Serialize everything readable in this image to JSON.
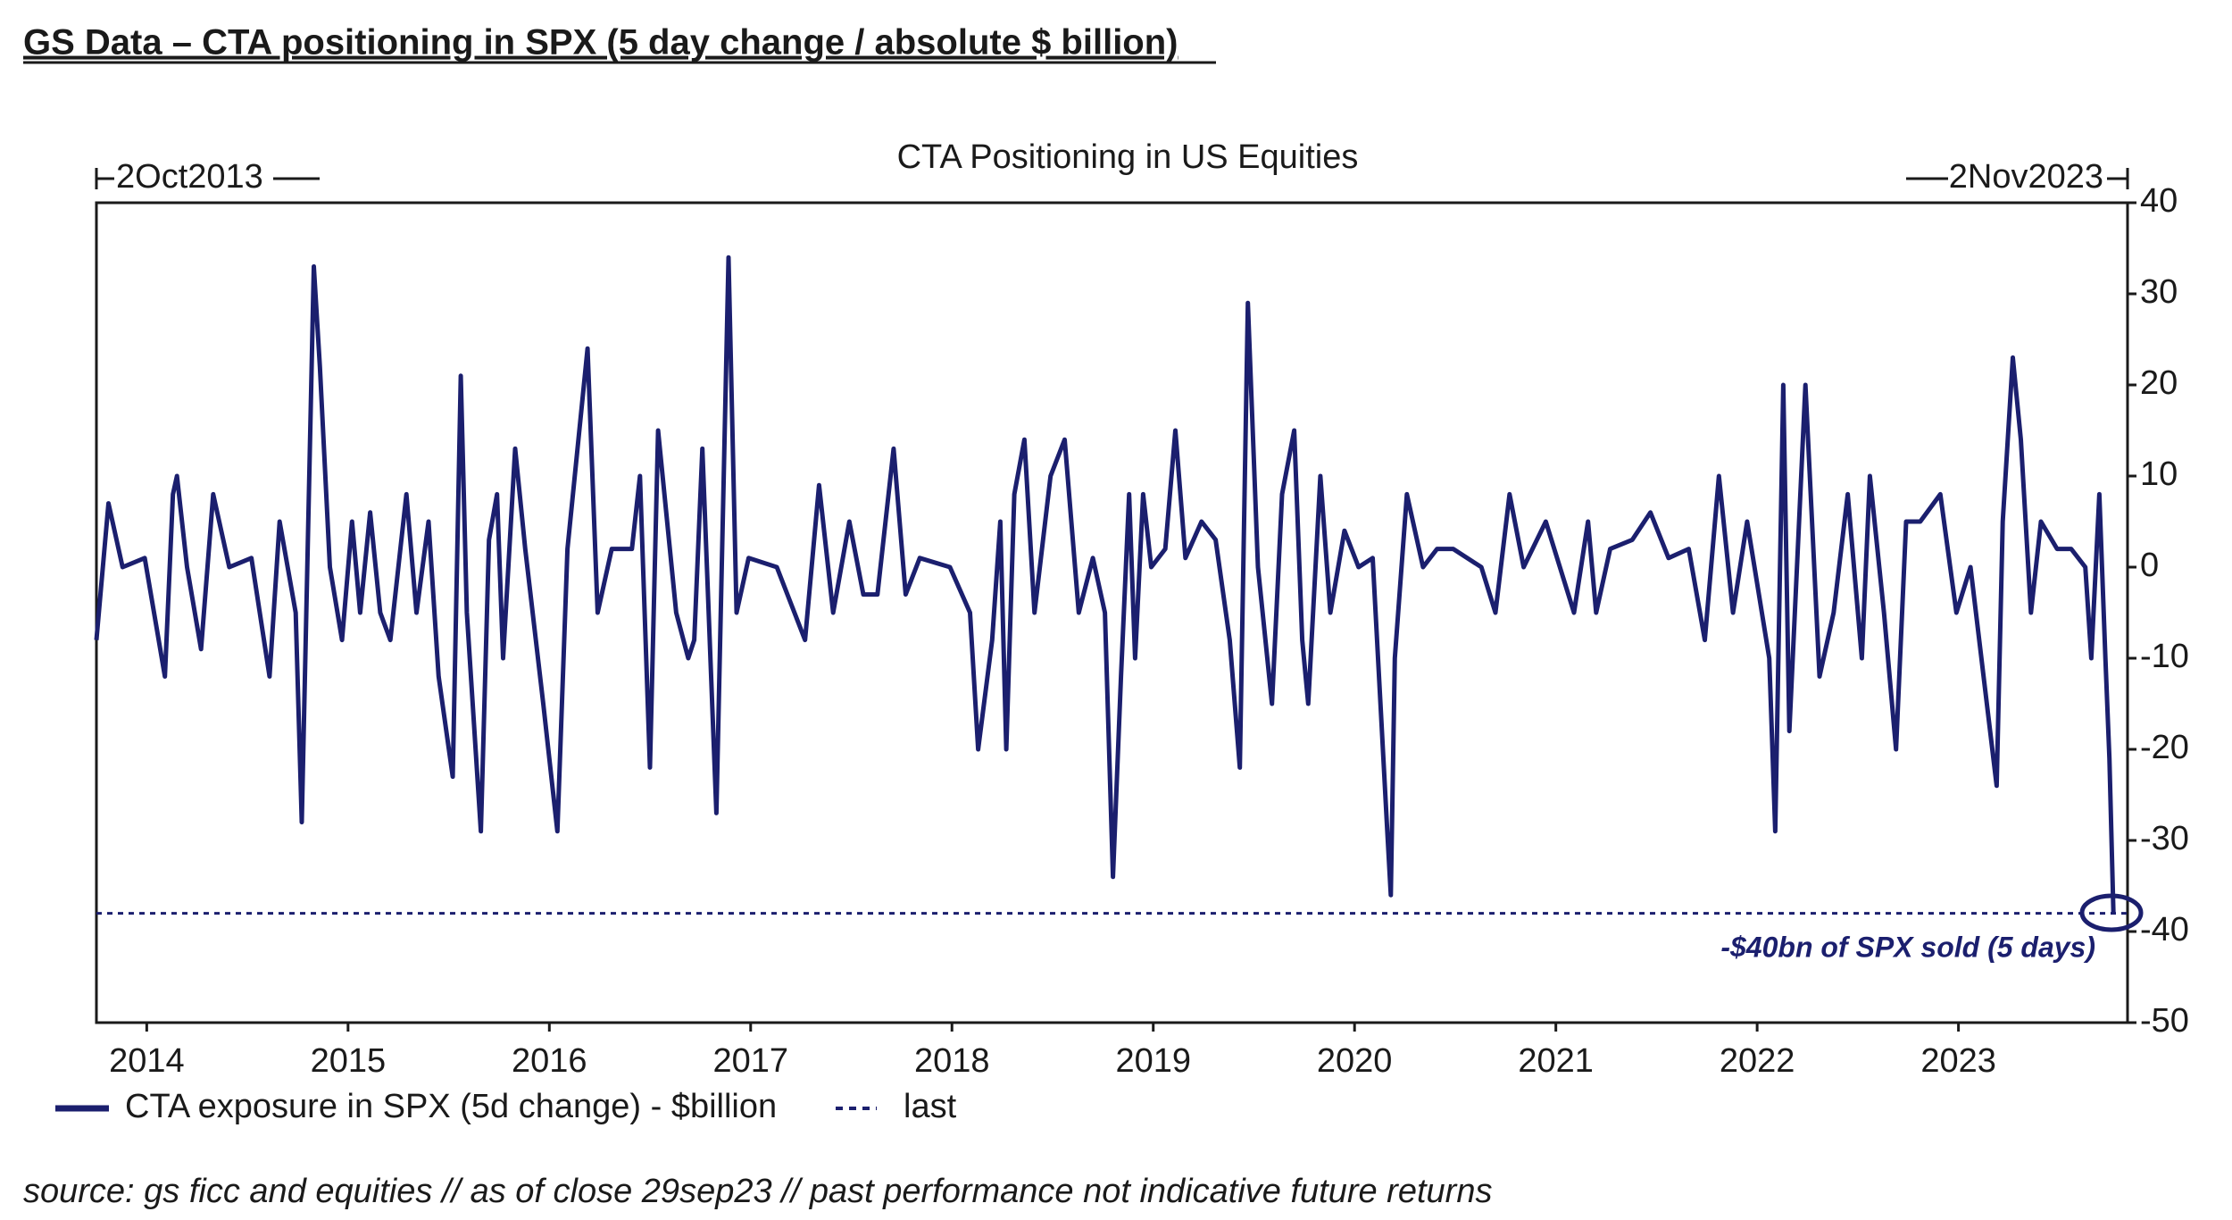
{
  "chart_data": {
    "type": "line",
    "header": "GS Data – CTA positioning in SPX (5 day change / absolute $ billion)",
    "title": "CTA Positioning in US Equities",
    "start_label": "2Oct2013",
    "end_label": "2Nov2023",
    "x": [
      2013.75,
      2013.81,
      2013.88,
      2013.99,
      2014.09,
      2014.13,
      2014.15,
      2014.2,
      2014.27,
      2014.33,
      2014.41,
      2014.52,
      2014.61,
      2014.66,
      2014.74,
      2014.77,
      2014.83,
      2014.86,
      2014.91,
      2014.97,
      2015.02,
      2015.06,
      2015.11,
      2015.16,
      2015.21,
      2015.29,
      2015.34,
      2015.4,
      2015.45,
      2015.52,
      2015.56,
      2015.59,
      2015.66,
      2015.7,
      2015.74,
      2015.77,
      2015.83,
      2015.88,
      2015.97,
      2016.04,
      2016.09,
      2016.19,
      2016.24,
      2016.31,
      2016.41,
      2016.45,
      2016.5,
      2016.54,
      2016.63,
      2016.69,
      2016.72,
      2016.76,
      2016.83,
      2016.89,
      2016.93,
      2016.99,
      2017.13,
      2017.27,
      2017.34,
      2017.41,
      2017.49,
      2017.56,
      2017.63,
      2017.71,
      2017.77,
      2017.84,
      2017.99,
      2018.09,
      2018.13,
      2018.2,
      2018.24,
      2018.27,
      2018.31,
      2018.36,
      2018.41,
      2018.49,
      2018.56,
      2018.63,
      2018.7,
      2018.76,
      2018.8,
      2018.84,
      2018.88,
      2018.91,
      2018.95,
      2018.99,
      2019.06,
      2019.11,
      2019.16,
      2019.24,
      2019.31,
      2019.38,
      2019.43,
      2019.47,
      2019.52,
      2019.59,
      2019.64,
      2019.7,
      2019.74,
      2019.77,
      2019.83,
      2019.88,
      2019.95,
      2020.02,
      2020.09,
      2020.16,
      2020.18,
      2020.2,
      2020.26,
      2020.34,
      2020.41,
      2020.49,
      2020.63,
      2020.7,
      2020.77,
      2020.84,
      2020.95,
      2021.02,
      2021.09,
      2021.16,
      2021.2,
      2021.27,
      2021.38,
      2021.47,
      2021.56,
      2021.66,
      2021.74,
      2021.81,
      2021.88,
      2021.95,
      2022.06,
      2022.09,
      2022.13,
      2022.16,
      2022.24,
      2022.31,
      2022.38,
      2022.45,
      2022.52,
      2022.56,
      2022.63,
      2022.69,
      2022.74,
      2022.81,
      2022.91,
      2022.99,
      2023.06,
      2023.19,
      2023.22,
      2023.27,
      2023.31,
      2023.36,
      2023.41,
      2023.49,
      2023.56,
      2023.63,
      2023.66,
      2023.7,
      2023.73,
      2023.75,
      2023.77
    ],
    "series": [
      {
        "name": "CTA exposure in SPX (5d change) - $billion",
        "color": "#1b1f6e",
        "values": [
          -8,
          7,
          0,
          1,
          -12,
          8,
          10,
          0,
          -9,
          8,
          0,
          1,
          -12,
          5,
          -5,
          -28,
          33,
          22,
          0,
          -8,
          5,
          -5,
          6,
          -5,
          -8,
          8,
          -5,
          5,
          -12,
          -23,
          21,
          -5,
          -29,
          3,
          8,
          -10,
          13,
          2,
          -15,
          -29,
          2,
          24,
          -5,
          2,
          2,
          10,
          -22,
          15,
          -5,
          -10,
          -8,
          13,
          -27,
          34,
          -5,
          1,
          0,
          -8,
          9,
          -5,
          5,
          -3,
          -3,
          13,
          -3,
          1,
          0,
          -5,
          -20,
          -8,
          5,
          -20,
          8,
          14,
          -5,
          10,
          14,
          -5,
          1,
          -5,
          -34,
          -12,
          8,
          -10,
          8,
          0,
          2,
          15,
          1,
          5,
          3,
          -8,
          -22,
          29,
          0,
          -15,
          8,
          15,
          -8,
          -15,
          10,
          -5,
          4,
          0,
          1,
          -28,
          -36,
          -10,
          8,
          0,
          2,
          2,
          0,
          -5,
          8,
          0,
          5,
          0,
          -5,
          5,
          -5,
          2,
          3,
          6,
          1,
          2,
          -8,
          10,
          -5,
          5,
          -10,
          -29,
          20,
          -18,
          20,
          -12,
          -5,
          8,
          -10,
          10,
          -5,
          -20,
          5,
          5,
          8,
          -5,
          0,
          -24,
          5,
          23,
          14,
          -5,
          5,
          2,
          2,
          0,
          -10,
          8,
          -10,
          -21,
          -38
        ]
      }
    ],
    "reference_line": {
      "name": "last",
      "value": -38,
      "color": "#1b1f6e"
    },
    "annotation": "-$40bn of SPX sold (5 days)",
    "source": "source: gs ficc and equities // as of close 29sep23 // past performance not indicative future returns",
    "xlim": [
      2013.75,
      2023.84
    ],
    "xticks": [
      2014,
      2015,
      2016,
      2017,
      2018,
      2019,
      2020,
      2021,
      2022,
      2023
    ],
    "ylim": [
      -50,
      40
    ],
    "yticks": [
      -50,
      -40,
      -30,
      -20,
      -10,
      0,
      10,
      20,
      30,
      40
    ],
    "y_axis_side": "right",
    "grid": false
  }
}
